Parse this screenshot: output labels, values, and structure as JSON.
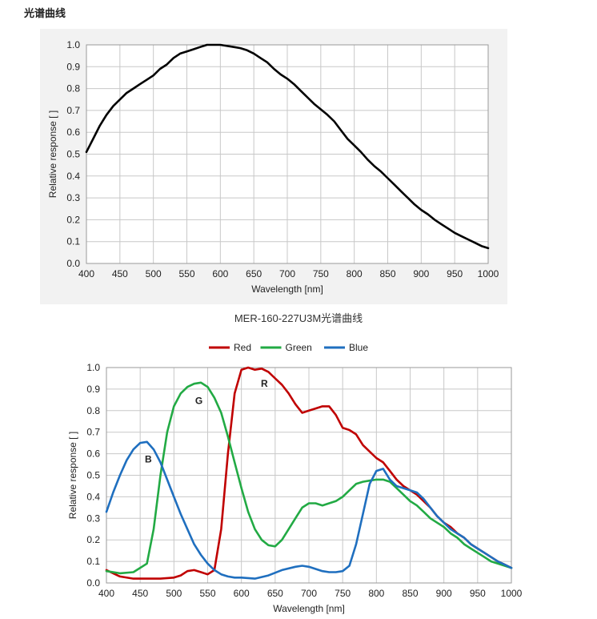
{
  "section_title": "光谱曲线",
  "chart_data": [
    {
      "type": "line",
      "title": "",
      "caption": "MER-160-227U3M光谱曲线",
      "xlabel": "Wavelength [nm]",
      "ylabel": "Relative response [ ]",
      "xlim": [
        400,
        1000
      ],
      "ylim": [
        0,
        1.0
      ],
      "x_ticks": [
        "400",
        "450",
        "500",
        "550",
        "600",
        "650",
        "700",
        "750",
        "800",
        "850",
        "900",
        "950",
        "1000"
      ],
      "y_ticks": [
        "0.0",
        "0.1",
        "0.2",
        "0.3",
        "0.4",
        "0.5",
        "0.6",
        "0.7",
        "0.8",
        "0.9",
        "1.0"
      ],
      "grid": true,
      "colors": [
        "#000000"
      ],
      "series": [
        {
          "x": [
            400,
            410,
            420,
            430,
            440,
            450,
            460,
            470,
            480,
            490,
            500,
            510,
            520,
            530,
            540,
            550,
            560,
            570,
            580,
            590,
            600,
            610,
            620,
            630,
            640,
            650,
            660,
            670,
            680,
            690,
            700,
            710,
            720,
            730,
            740,
            750,
            760,
            770,
            780,
            790,
            800,
            810,
            820,
            830,
            840,
            850,
            860,
            870,
            880,
            890,
            900,
            910,
            920,
            930,
            940,
            950,
            960,
            970,
            980,
            990,
            1000
          ],
          "y": [
            0.51,
            0.57,
            0.63,
            0.68,
            0.72,
            0.75,
            0.78,
            0.8,
            0.82,
            0.84,
            0.86,
            0.89,
            0.91,
            0.94,
            0.96,
            0.97,
            0.98,
            0.99,
            1.0,
            1.0,
            1.0,
            0.995,
            0.99,
            0.985,
            0.975,
            0.96,
            0.94,
            0.92,
            0.89,
            0.865,
            0.845,
            0.82,
            0.79,
            0.76,
            0.73,
            0.705,
            0.68,
            0.65,
            0.61,
            0.57,
            0.54,
            0.51,
            0.475,
            0.445,
            0.42,
            0.39,
            0.36,
            0.33,
            0.3,
            0.27,
            0.245,
            0.225,
            0.2,
            0.18,
            0.16,
            0.14,
            0.125,
            0.11,
            0.095,
            0.08,
            0.07
          ]
        }
      ]
    },
    {
      "type": "line",
      "title": "",
      "xlabel": "Wavelength [nm]",
      "ylabel": "Relative response [ ]",
      "xlim": [
        400,
        1000
      ],
      "ylim": [
        0,
        1.0
      ],
      "x_ticks": [
        "400",
        "450",
        "500",
        "550",
        "600",
        "650",
        "700",
        "750",
        "800",
        "850",
        "900",
        "950",
        "1000"
      ],
      "y_ticks": [
        "0.0",
        "0.1",
        "0.2",
        "0.3",
        "0.4",
        "0.5",
        "0.6",
        "0.7",
        "0.8",
        "0.9",
        "1.0"
      ],
      "grid": true,
      "legend_position": "top",
      "annotations": [
        {
          "text": "B",
          "x": 462,
          "y": 0.56
        },
        {
          "text": "G",
          "x": 537,
          "y": 0.83
        },
        {
          "text": "R",
          "x": 634,
          "y": 0.91
        }
      ],
      "series": [
        {
          "name": "Red",
          "color": "#c00000",
          "x": [
            400,
            420,
            440,
            460,
            480,
            500,
            510,
            520,
            530,
            540,
            550,
            560,
            570,
            580,
            590,
            600,
            610,
            620,
            630,
            640,
            650,
            660,
            670,
            680,
            690,
            700,
            710,
            720,
            730,
            740,
            750,
            760,
            770,
            780,
            790,
            800,
            810,
            820,
            830,
            840,
            850,
            860,
            870,
            880,
            890,
            900,
            910,
            920,
            930,
            940,
            950,
            960,
            970,
            980,
            990,
            1000
          ],
          "y": [
            0.06,
            0.03,
            0.02,
            0.02,
            0.02,
            0.025,
            0.035,
            0.055,
            0.06,
            0.05,
            0.04,
            0.06,
            0.25,
            0.6,
            0.88,
            0.99,
            1.0,
            0.99,
            0.995,
            0.98,
            0.95,
            0.92,
            0.88,
            0.83,
            0.79,
            0.8,
            0.81,
            0.82,
            0.82,
            0.78,
            0.72,
            0.71,
            0.69,
            0.64,
            0.61,
            0.58,
            0.56,
            0.52,
            0.48,
            0.45,
            0.43,
            0.41,
            0.38,
            0.35,
            0.31,
            0.28,
            0.26,
            0.23,
            0.21,
            0.18,
            0.16,
            0.14,
            0.12,
            0.1,
            0.085,
            0.07
          ]
        },
        {
          "name": "Green",
          "color": "#22aa44",
          "x": [
            400,
            420,
            440,
            460,
            470,
            480,
            490,
            500,
            510,
            520,
            530,
            540,
            550,
            560,
            570,
            580,
            590,
            600,
            610,
            620,
            630,
            640,
            650,
            660,
            670,
            680,
            690,
            700,
            710,
            720,
            730,
            740,
            750,
            760,
            770,
            780,
            790,
            800,
            810,
            820,
            830,
            840,
            850,
            860,
            870,
            880,
            890,
            900,
            910,
            920,
            930,
            940,
            950,
            960,
            970,
            980,
            990,
            1000
          ],
          "y": [
            0.055,
            0.045,
            0.05,
            0.09,
            0.25,
            0.5,
            0.7,
            0.82,
            0.88,
            0.91,
            0.925,
            0.93,
            0.91,
            0.86,
            0.79,
            0.68,
            0.56,
            0.44,
            0.33,
            0.25,
            0.2,
            0.175,
            0.17,
            0.2,
            0.25,
            0.3,
            0.35,
            0.37,
            0.37,
            0.36,
            0.37,
            0.38,
            0.4,
            0.43,
            0.46,
            0.47,
            0.475,
            0.48,
            0.48,
            0.47,
            0.44,
            0.41,
            0.38,
            0.36,
            0.33,
            0.3,
            0.28,
            0.26,
            0.23,
            0.21,
            0.18,
            0.16,
            0.14,
            0.12,
            0.1,
            0.09,
            0.08,
            0.07
          ]
        },
        {
          "name": "Blue",
          "color": "#1f6fbf",
          "x": [
            400,
            410,
            420,
            430,
            440,
            450,
            460,
            470,
            480,
            490,
            500,
            510,
            520,
            530,
            540,
            550,
            560,
            570,
            580,
            590,
            600,
            620,
            640,
            660,
            680,
            690,
            700,
            710,
            720,
            730,
            740,
            750,
            760,
            770,
            780,
            790,
            800,
            810,
            820,
            830,
            840,
            850,
            860,
            870,
            880,
            890,
            900,
            910,
            920,
            930,
            940,
            950,
            960,
            970,
            980,
            990,
            1000
          ],
          "y": [
            0.33,
            0.42,
            0.5,
            0.57,
            0.62,
            0.65,
            0.655,
            0.62,
            0.56,
            0.48,
            0.4,
            0.32,
            0.25,
            0.18,
            0.13,
            0.09,
            0.06,
            0.04,
            0.03,
            0.025,
            0.025,
            0.02,
            0.035,
            0.06,
            0.075,
            0.08,
            0.075,
            0.065,
            0.055,
            0.05,
            0.05,
            0.055,
            0.08,
            0.18,
            0.32,
            0.46,
            0.52,
            0.53,
            0.48,
            0.45,
            0.44,
            0.43,
            0.42,
            0.39,
            0.35,
            0.31,
            0.28,
            0.25,
            0.23,
            0.21,
            0.18,
            0.16,
            0.14,
            0.12,
            0.1,
            0.085,
            0.07
          ]
        }
      ]
    }
  ]
}
